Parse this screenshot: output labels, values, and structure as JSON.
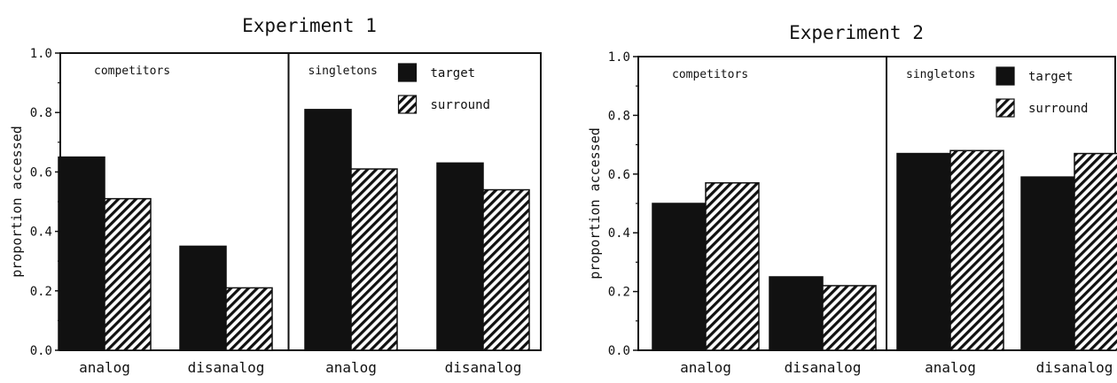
{
  "chart_data": [
    {
      "type": "bar",
      "title": "Experiment 1",
      "ylabel": "proportion accessed",
      "xlabel": "",
      "ylim": [
        0,
        1.0
      ],
      "yticks": [
        "0.0",
        "0.2",
        "0.4",
        "0.6",
        "0.8",
        "1.0"
      ],
      "ytick_values": [
        0,
        0.2,
        0.4,
        0.6,
        0.8,
        1.0
      ],
      "categories": [
        "analog",
        "disanalog",
        "analog",
        "disanalog"
      ],
      "panels": [
        "competitors",
        "singletons"
      ],
      "series": [
        {
          "name": "target",
          "values": [
            0.65,
            0.35,
            0.81,
            0.63
          ],
          "color": "#111111",
          "pattern": "solid"
        },
        {
          "name": "surround",
          "values": [
            0.51,
            0.21,
            0.61,
            0.54
          ],
          "color": "#111111",
          "pattern": "hatch"
        }
      ],
      "legend": "top-right",
      "grid": false
    },
    {
      "type": "bar",
      "title": "Experiment 2",
      "ylabel": "proportion accessed",
      "xlabel": "",
      "ylim": [
        0,
        1.0
      ],
      "yticks": [
        "0.0",
        "0.2",
        "0.4",
        "0.6",
        "0.8",
        "1.0"
      ],
      "ytick_values": [
        0,
        0.2,
        0.4,
        0.6,
        0.8,
        1.0
      ],
      "categories": [
        "analog",
        "disanalog",
        "analog",
        "disanalog"
      ],
      "panels": [
        "competitors",
        "singletons"
      ],
      "series": [
        {
          "name": "target",
          "values": [
            0.5,
            0.25,
            0.67,
            0.59
          ],
          "color": "#111111",
          "pattern": "solid"
        },
        {
          "name": "surround",
          "values": [
            0.57,
            0.22,
            0.68,
            0.67
          ],
          "color": "#111111",
          "pattern": "hatch"
        }
      ],
      "legend": "top-right",
      "grid": false
    }
  ]
}
